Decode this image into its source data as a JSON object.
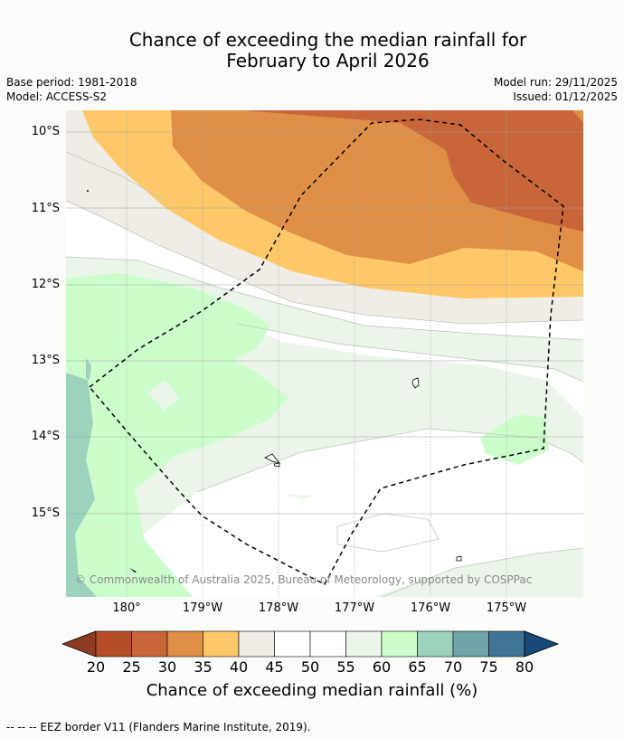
{
  "title_line1": "Chance of exceeding the median rainfall for",
  "title_line2": "February to April 2026",
  "base_period": "Base period: 1981-2018",
  "model": "Model: ACCESS-S2",
  "model_run": "Model run: 29/11/2025",
  "issued": "Issued: 01/12/2025",
  "lat_labels": [
    "10°S",
    "11°S",
    "12°S",
    "13°S",
    "14°S",
    "15°S"
  ],
  "lon_labels": [
    "180°",
    "179°W",
    "178°W",
    "177°W",
    "176°W",
    "175°W"
  ],
  "copyright": "© Commonwealth of Australia 2025, Bureau of Meteorology, supported by COSPPac",
  "colorbar": {
    "ticks": [
      "20",
      "25",
      "30",
      "35",
      "40",
      "45",
      "50",
      "55",
      "60",
      "65",
      "70",
      "75",
      "80"
    ],
    "label": "Chance of exceeding median rainfall (%)",
    "colors": [
      "#b44d27",
      "#c8663a",
      "#e08f47",
      "#fec868",
      "#f0ece6",
      "#ffffff",
      "#ffffff",
      "#ebf5ea",
      "#ccfecc",
      "#9dd2bd",
      "#6ea6a9",
      "#407497"
    ],
    "under_color": "#8e3b23",
    "over_color": "#164a7b"
  },
  "legend": "--  --  -- EEZ border V11 (Flanders Marine Institute, 2019)."
}
